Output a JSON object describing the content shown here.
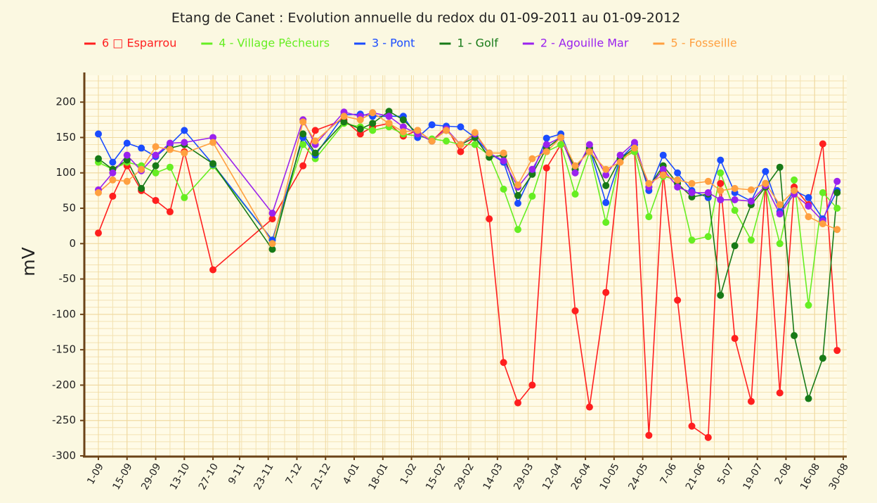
{
  "chart_data": {
    "type": "line",
    "title": "Etang de Canet : Evolution annuelle du redox du 01-09-2011 au 01-09-2012",
    "y_label": "mV",
    "x": [
      "1-09",
      "8-09",
      "15-09",
      "22-09",
      "29-09",
      "6-10",
      "13-10",
      "27-10",
      "25-11",
      "10-12",
      "16-12",
      "30-12",
      "7-01",
      "13-01",
      "21-01",
      "28-01",
      "4-02",
      "11-02",
      "18-02",
      "25-02",
      "3-03",
      "10-03",
      "17-03",
      "24-03",
      "31-03",
      "7-04",
      "14-04",
      "21-04",
      "28-04",
      "6-05",
      "13-05",
      "20-05",
      "27-05",
      "3-06",
      "10-06",
      "17-06",
      "25-06",
      "1-07",
      "8-07",
      "16-07",
      "23-07",
      "30-07",
      "6-08",
      "13-08",
      "20-08",
      "27-08"
    ],
    "series": [
      {
        "name": "6 □ Esparrou",
        "color": "#ff1f1f",
        "values": [
          15,
          67,
          110,
          75,
          61,
          45,
          130,
          -37,
          35,
          110,
          160,
          175,
          155,
          165,
          170,
          152,
          160,
          145,
          165,
          130,
          150,
          35,
          -168,
          -225,
          -200,
          107,
          140,
          -95,
          -231,
          -69,
          120,
          130,
          -271,
          100,
          -80,
          -258,
          -274,
          85,
          -134,
          -223,
          85,
          -211,
          80,
          55,
          141,
          -151
        ]
      },
      {
        "name": "4 - Village Pêcheurs",
        "color": "#66ee22",
        "values": [
          115,
          105,
          115,
          110,
          100,
          108,
          65,
          110,
          5,
          140,
          120,
          170,
          165,
          160,
          165,
          155,
          152,
          148,
          145,
          140,
          140,
          125,
          77,
          20,
          67,
          130,
          140,
          70,
          130,
          30,
          120,
          130,
          38,
          95,
          90,
          5,
          10,
          100,
          47,
          5,
          80,
          0,
          90,
          -87,
          72,
          50
        ]
      },
      {
        "name": "3 - Pont",
        "color": "#1a4cff",
        "values": [
          155,
          115,
          142,
          135,
          123,
          140,
          160,
          112,
          5,
          150,
          125,
          182,
          183,
          180,
          180,
          180,
          150,
          168,
          166,
          165,
          150,
          128,
          115,
          57,
          100,
          149,
          155,
          105,
          135,
          58,
          120,
          140,
          75,
          125,
          100,
          75,
          65,
          118,
          72,
          60,
          102,
          45,
          75,
          65,
          35,
          75
        ]
      },
      {
        "name": "1 - Golf",
        "color": "#177a17",
        "values": [
          120,
          105,
          118,
          78,
          110,
          135,
          140,
          113,
          -8,
          155,
          128,
          172,
          162,
          170,
          187,
          175,
          155,
          145,
          160,
          140,
          150,
          122,
          125,
          68,
          98,
          135,
          150,
          105,
          135,
          82,
          120,
          135,
          80,
          110,
          85,
          66,
          70,
          -73,
          -3,
          55,
          80,
          108,
          -130,
          -219,
          -162,
          72
        ]
      },
      {
        "name": "2 - Agouille Mar",
        "color": "#9a22ee",
        "values": [
          76,
          100,
          125,
          103,
          125,
          142,
          143,
          150,
          43,
          175,
          140,
          186,
          180,
          185,
          180,
          165,
          155,
          145,
          162,
          140,
          155,
          128,
          117,
          80,
          105,
          140,
          150,
          100,
          140,
          97,
          125,
          143,
          80,
          105,
          80,
          72,
          72,
          62,
          62,
          60,
          82,
          42,
          70,
          53,
          32,
          88
        ]
      },
      {
        "name": "5 - Fosseille",
        "color": "#ffa040",
        "values": [
          72,
          90,
          88,
          105,
          137,
          133,
          128,
          143,
          0,
          172,
          145,
          180,
          175,
          185,
          170,
          158,
          160,
          145,
          160,
          140,
          157,
          128,
          128,
          83,
          120,
          130,
          150,
          110,
          130,
          105,
          115,
          135,
          85,
          97,
          90,
          85,
          88,
          75,
          78,
          76,
          85,
          55,
          75,
          38,
          28,
          20
        ]
      }
    ],
    "xlim": [
      "1-09",
      "30-08"
    ],
    "xticks": [
      "1-09",
      "15-09",
      "29-09",
      "13-10",
      "27-10",
      "9-11",
      "23-11",
      "7-12",
      "21-12",
      "4-01",
      "18-01",
      "1-02",
      "15-02",
      "29-02",
      "14-03",
      "29-03",
      "12-04",
      "26-04",
      "10-05",
      "24-05",
      "7-06",
      "21-06",
      "5-07",
      "19-07",
      "2-08",
      "16-08",
      "30-08"
    ],
    "ylim": [
      -300,
      230
    ],
    "yticks": [
      -300,
      -250,
      -200,
      -150,
      -100,
      -50,
      0,
      50,
      100,
      150,
      200
    ],
    "grid": true
  }
}
